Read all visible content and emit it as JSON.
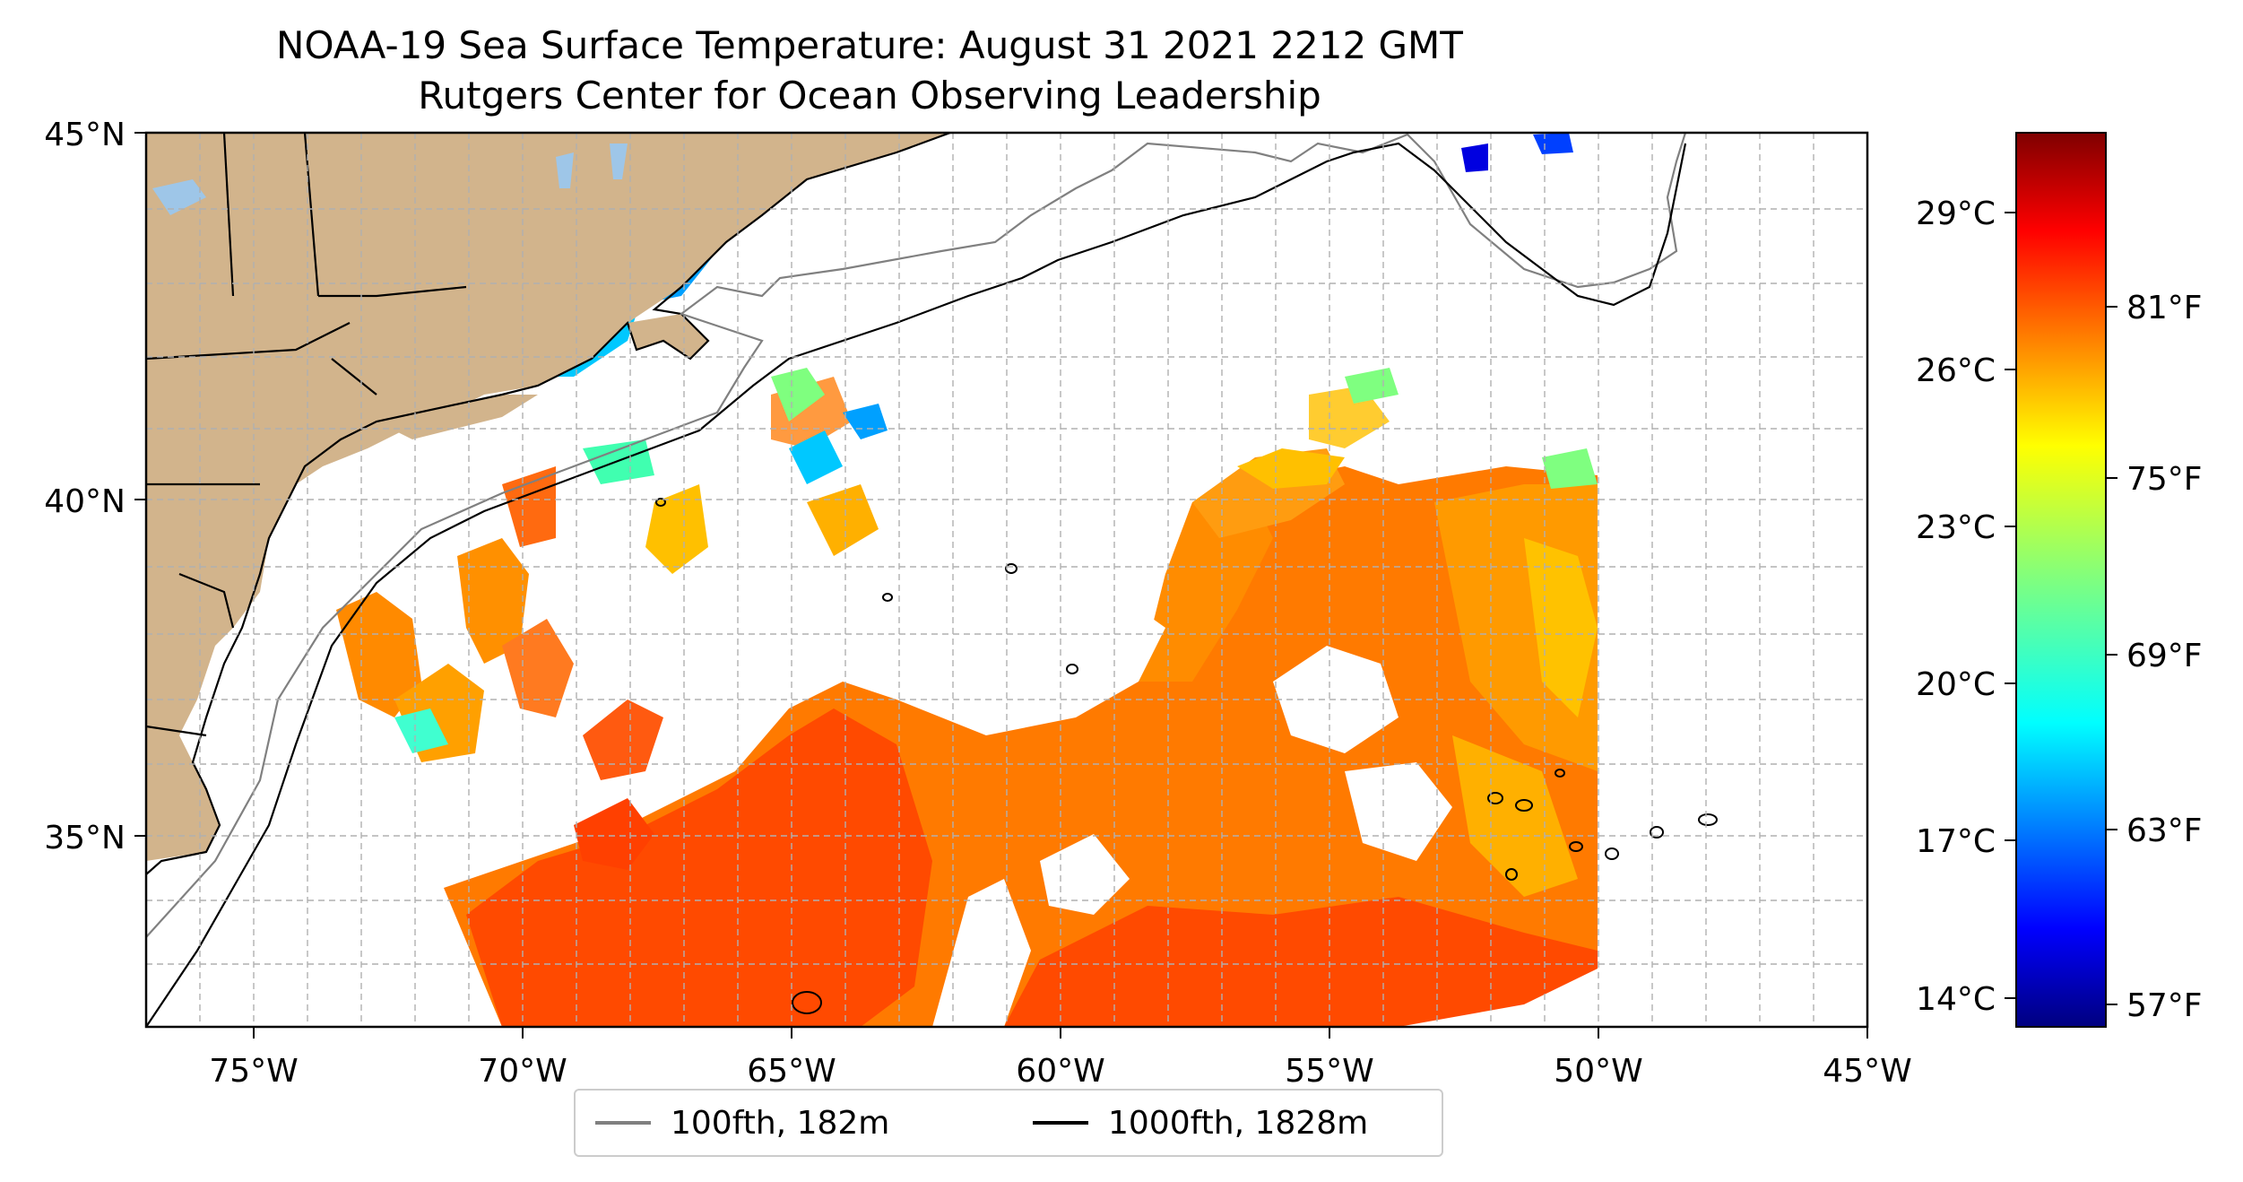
{
  "title": "NOAA-19 Sea Surface Temperature: August 31 2021 2212 GMT",
  "subtitle": "Rutgers Center for Ocean Observing Leadership",
  "map": {
    "lon_ticks": [
      "75°W",
      "70°W",
      "65°W",
      "60°W",
      "55°W",
      "50°W",
      "45°W"
    ],
    "lat_ticks": [
      "45°N",
      "40°N",
      "35°N"
    ],
    "lon_range": [
      -77,
      -45
    ],
    "lat_range": [
      32.3,
      45
    ],
    "gridlines": true,
    "land_color": "#d2b48c",
    "water_color": "#ffffff"
  },
  "colorbar": {
    "colormap": "jet",
    "celsius_ticks": [
      "29°C",
      "26°C",
      "23°C",
      "20°C",
      "17°C",
      "14°C"
    ],
    "fahrenheit_ticks": [
      "81°F",
      "75°F",
      "69°F",
      "63°F",
      "57°F"
    ],
    "range_f": [
      55.7,
      86.0
    ]
  },
  "legend": {
    "items": [
      {
        "label": "100fth, 182m",
        "color": "#808080"
      },
      {
        "label": "1000fth, 1828m",
        "color": "#000000"
      }
    ],
    "placement": "bottom-center"
  }
}
